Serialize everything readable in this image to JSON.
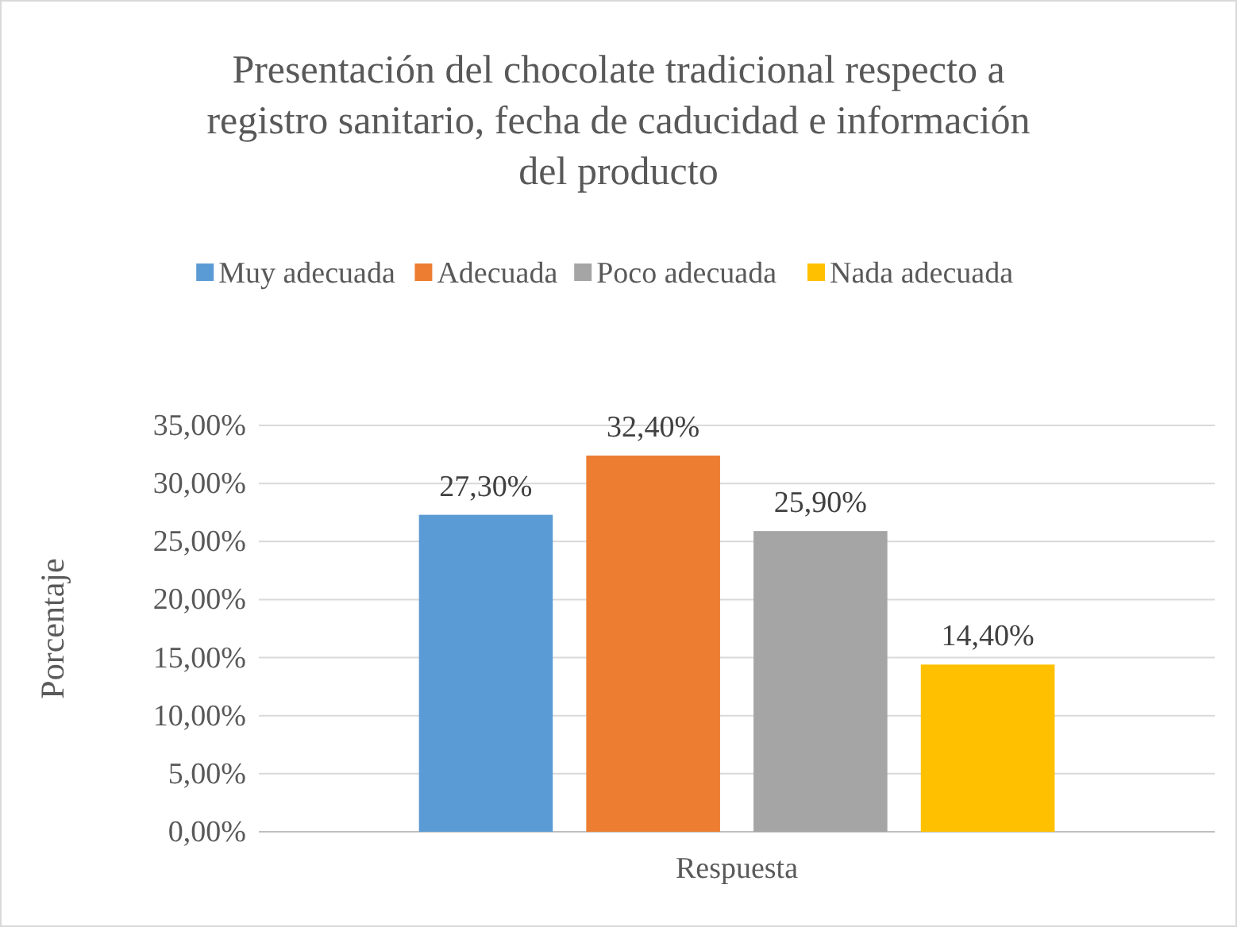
{
  "chart_data": {
    "type": "bar",
    "title": "Presentación del chocolate tradicional respecto a registro sanitario, fecha de caducidad e información del producto",
    "ylabel": "Porcentaje",
    "categories": [
      "Respuesta"
    ],
    "series": [
      {
        "name": "Muy adecuada",
        "color": "#5b9bd5",
        "values": [
          27.3
        ],
        "value_labels": [
          "27,30%"
        ]
      },
      {
        "name": "Adecuada",
        "color": "#ed7d31",
        "values": [
          32.4
        ],
        "value_labels": [
          "32,40%"
        ]
      },
      {
        "name": "Poco adecuada",
        "color": "#a5a5a5",
        "values": [
          25.9
        ],
        "value_labels": [
          "25,90%"
        ]
      },
      {
        "name": "Nada adecuada",
        "color": "#ffc000",
        "values": [
          14.4
        ],
        "value_labels": [
          "14,40%"
        ]
      }
    ],
    "ylim": [
      0,
      35
    ],
    "yticks": [
      {
        "value": 0,
        "label": "0,00%"
      },
      {
        "value": 5,
        "label": "5,00%"
      },
      {
        "value": 10,
        "label": "10,00%"
      },
      {
        "value": 15,
        "label": "15,00%"
      },
      {
        "value": 20,
        "label": "20,00%"
      },
      {
        "value": 25,
        "label": "25,00%"
      },
      {
        "value": 30,
        "label": "30,00%"
      },
      {
        "value": 35,
        "label": "35,00%"
      }
    ],
    "grid": "y",
    "legend": "top"
  }
}
